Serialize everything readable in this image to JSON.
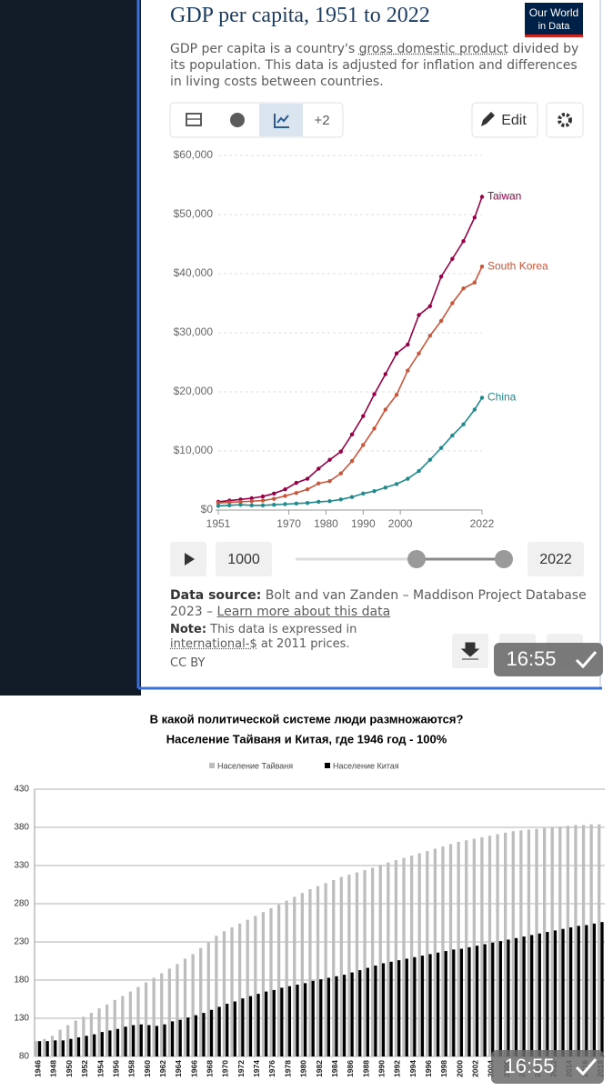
{
  "header": {
    "title": "GDP per capita, 1951 to 2022",
    "logo": [
      "Our World",
      "in Data"
    ],
    "subtitle": [
      "GDP per capita is a country's ",
      "gross domestic product",
      " divided by its population. This data is adjusted for inflation and differences in living costs between countries."
    ]
  },
  "toolbar": {
    "more": "+2",
    "edit": "Edit"
  },
  "chart_data": [
    {
      "type": "line",
      "x": [
        1951,
        1954,
        1957,
        1960,
        1963,
        1966,
        1969,
        1972,
        1975,
        1978,
        1981,
        1984,
        1987,
        1990,
        1993,
        1996,
        1999,
        2002,
        2005,
        2008,
        2011,
        2014,
        2017,
        2020,
        2022
      ],
      "series": [
        {
          "name": "Taiwan",
          "color": "#970046",
          "values": [
            1400,
            1600,
            1800,
            2000,
            2300,
            2800,
            3500,
            4600,
            5300,
            7000,
            8500,
            9900,
            12800,
            15900,
            19600,
            23000,
            26500,
            28000,
            33000,
            34500,
            39500,
            42500,
            45500,
            49500,
            53000
          ]
        },
        {
          "name": "South Korea",
          "color": "#c9563a",
          "values": [
            1200,
            1300,
            1400,
            1500,
            1600,
            1900,
            2400,
            2900,
            3500,
            4500,
            4900,
            6200,
            8300,
            11000,
            13800,
            17000,
            19500,
            23600,
            26500,
            29500,
            32000,
            35000,
            37500,
            38500,
            41200
          ]
        },
        {
          "name": "China",
          "color": "#1f8a8d",
          "values": [
            700,
            800,
            900,
            800,
            800,
            900,
            1000,
            1100,
            1200,
            1400,
            1500,
            1800,
            2200,
            2800,
            3200,
            3800,
            4400,
            5300,
            6600,
            8500,
            10500,
            12600,
            14500,
            17000,
            19000
          ]
        }
      ],
      "xlim": [
        1951,
        2022
      ],
      "xticks": [
        1951,
        1970,
        1980,
        1990,
        2000,
        2022
      ],
      "ylim": [
        0,
        60000
      ],
      "yticks": [
        {
          "value": 0,
          "label": "$0"
        },
        {
          "value": 10000,
          "label": "$10,000"
        },
        {
          "value": 20000,
          "label": "$20,000"
        },
        {
          "value": 30000,
          "label": "$30,000"
        },
        {
          "value": 40000,
          "label": "$40,000"
        },
        {
          "value": 50000,
          "label": "$50,000"
        },
        {
          "value": 60000,
          "label": "$60,000"
        }
      ],
      "grid": true
    },
    {
      "type": "bar",
      "title": "В какой политической системе люди размножаются?",
      "subtitle": "Население Тайваня  и Китая, где 1946 год - 100%",
      "categories": [
        "1946",
        null,
        "1948",
        null,
        "1950",
        null,
        "1952",
        null,
        "1954",
        null,
        "1956",
        null,
        "1958",
        null,
        "1960",
        null,
        "1962",
        null,
        "1964",
        null,
        "1966",
        null,
        "1968",
        null,
        "1970",
        null,
        "1972",
        null,
        "1974",
        null,
        "1976",
        null,
        "1978",
        null,
        "1980",
        null,
        "1982",
        null,
        "1984",
        null,
        "1986",
        null,
        "1988",
        null,
        "1990",
        null,
        "1992",
        null,
        "1994",
        null,
        "1996",
        null,
        "1998",
        null,
        "2000",
        null,
        "2002",
        null,
        "2004",
        null,
        "2006",
        null,
        "2008",
        null,
        "2010",
        null,
        "2012",
        null,
        "2014",
        null,
        "2016",
        null,
        "2018"
      ],
      "series": [
        {
          "name": "Население Тайваня",
          "color": "#bdbdbd",
          "values": [
            100,
            103,
            107,
            115,
            121,
            127,
            132,
            137,
            143,
            148,
            154,
            159,
            165,
            171,
            177,
            183,
            189,
            195,
            201,
            208,
            214,
            222,
            229,
            238,
            244,
            249,
            254,
            259,
            264,
            269,
            274,
            279,
            284,
            289,
            294,
            299,
            303,
            307,
            311,
            315,
            318,
            321,
            324,
            327,
            331,
            334,
            337,
            340,
            343,
            346,
            349,
            352,
            355,
            358,
            361,
            363,
            365,
            367,
            369,
            371,
            373,
            375,
            376,
            377,
            378,
            379,
            380,
            381,
            382,
            383,
            383,
            384,
            384
          ]
        },
        {
          "name": "Население Китая",
          "color": "#000000",
          "values": [
            100,
            100,
            101,
            101,
            103,
            105,
            107,
            109,
            112,
            114,
            116,
            119,
            121,
            122,
            121,
            120,
            122,
            126,
            128,
            131,
            134,
            137,
            141,
            145,
            149,
            152,
            156,
            159,
            162,
            165,
            167,
            170,
            172,
            174,
            176,
            179,
            181,
            183,
            185,
            187,
            190,
            193,
            196,
            199,
            202,
            204,
            206,
            208,
            210,
            212,
            214,
            216,
            218,
            220,
            221,
            223,
            225,
            227,
            229,
            231,
            233,
            235,
            237,
            239,
            241,
            243,
            245,
            247,
            249,
            251,
            252,
            254,
            256
          ]
        }
      ],
      "ylim": [
        80,
        430
      ],
      "yticks": [
        80,
        130,
        180,
        230,
        280,
        330,
        380,
        430
      ],
      "grid": true
    }
  ],
  "timeline": {
    "start": "1000",
    "end": "2022"
  },
  "footer": {
    "source_label": "Data source:",
    "source": " Bolt and van Zanden – Maddison Project Database 2023 – ",
    "link": "Learn more about this data",
    "note_label": "Note:",
    "note": [
      " This data is expressed in ",
      "international-$",
      " at 2011 prices."
    ],
    "license": "CC BY"
  },
  "timestamps": [
    "16:55",
    "16:55"
  ]
}
